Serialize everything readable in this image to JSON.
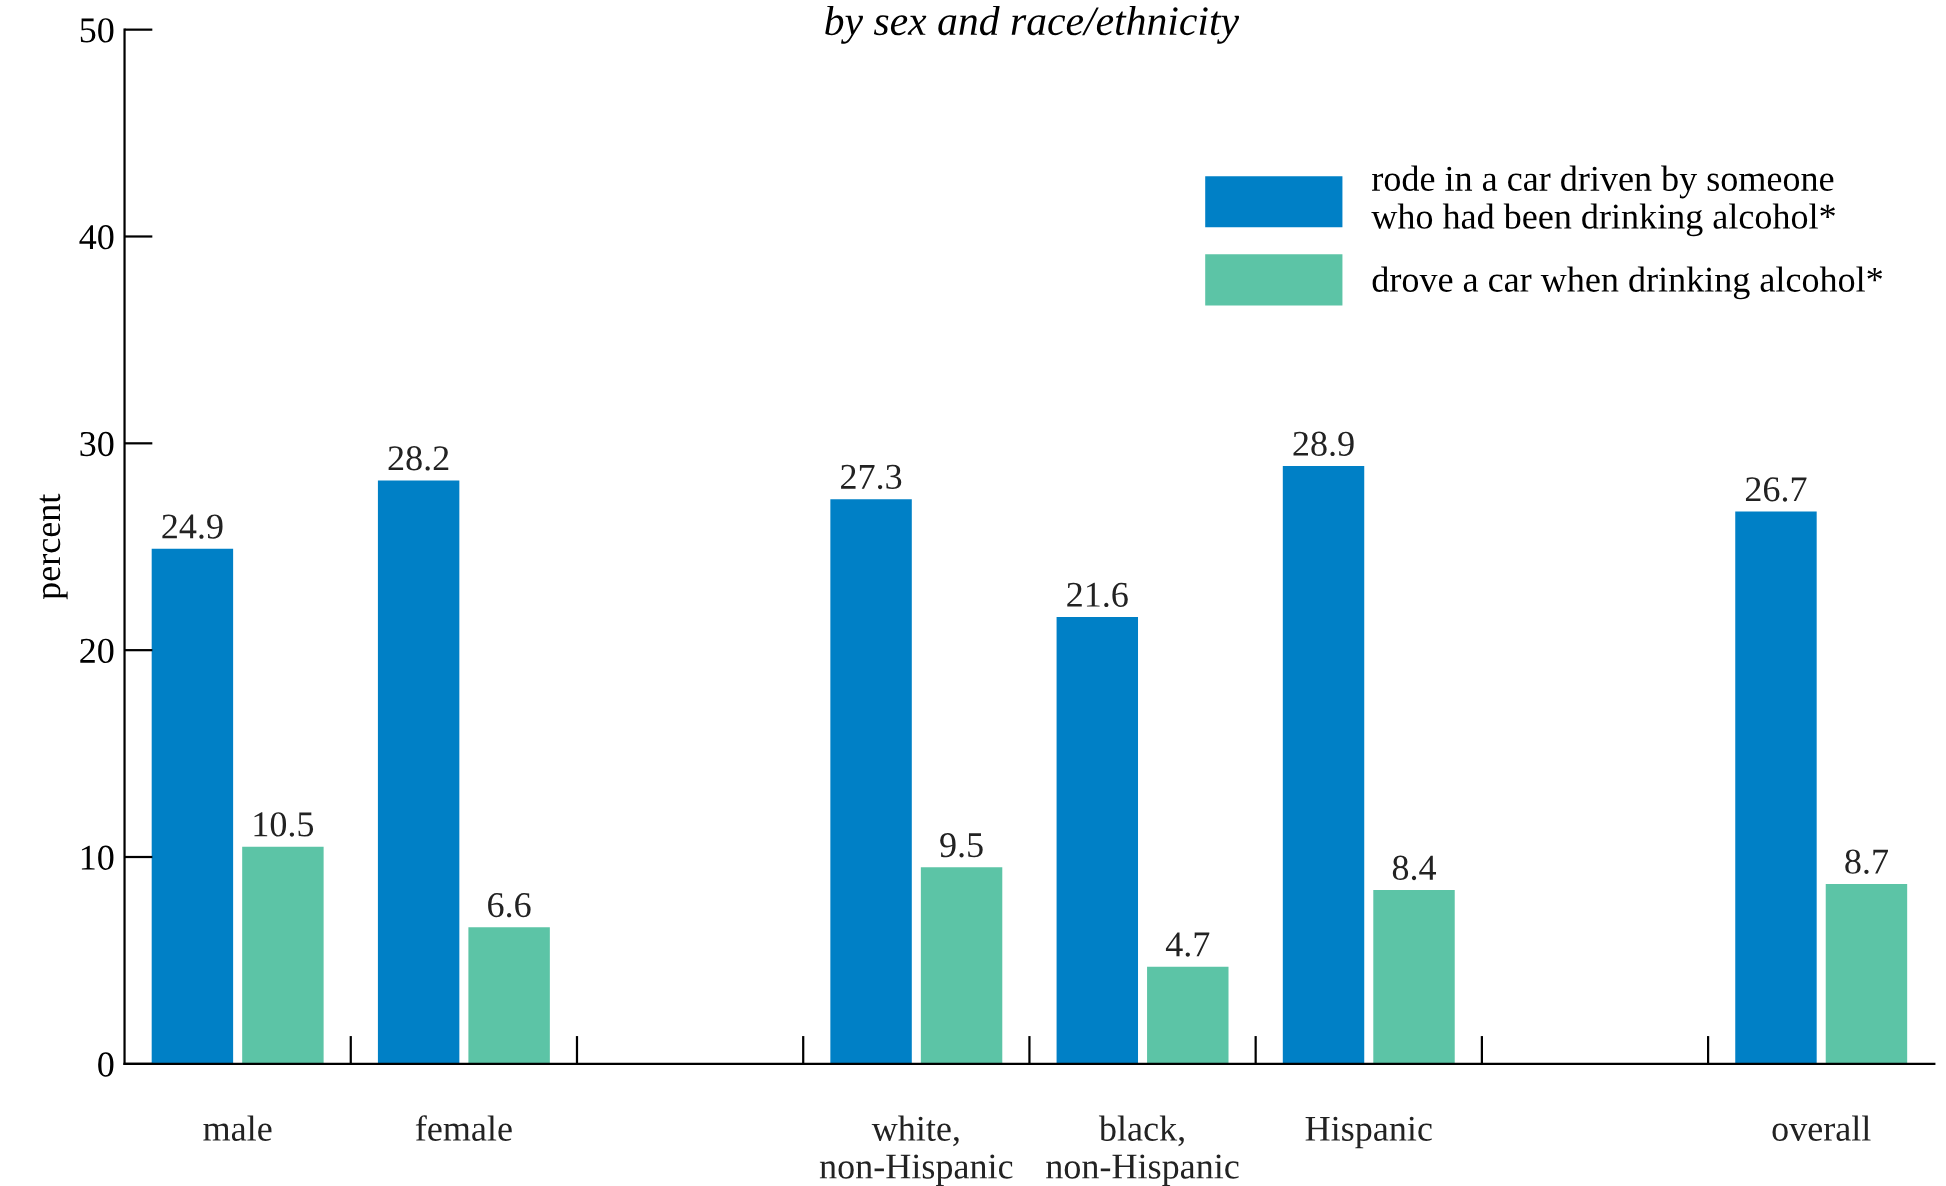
{
  "chart_data": {
    "type": "bar",
    "title": "by sex and race/ethnicity",
    "ylabel": "percent",
    "categories": [
      "male",
      "female",
      null,
      "white,\nnon-Hispanic",
      "black,\nnon-Hispanic",
      "Hispanic",
      null,
      "overall"
    ],
    "series": [
      {
        "name": "rode in a car driven by someone\nwho had been drinking alcohol*",
        "color": "#0080c6",
        "values": [
          24.9,
          28.2,
          null,
          27.3,
          21.6,
          28.9,
          null,
          26.7
        ]
      },
      {
        "name": "drove a car when drinking alcohol*",
        "color": "#5cc4a6",
        "values": [
          10.5,
          6.6,
          null,
          9.5,
          4.7,
          8.4,
          null,
          8.7
        ]
      }
    ],
    "ylim": [
      0,
      50
    ],
    "yticks": [
      0,
      10,
      20,
      30,
      40,
      50
    ],
    "grid": false,
    "legend": "top right",
    "data_labels": true
  }
}
